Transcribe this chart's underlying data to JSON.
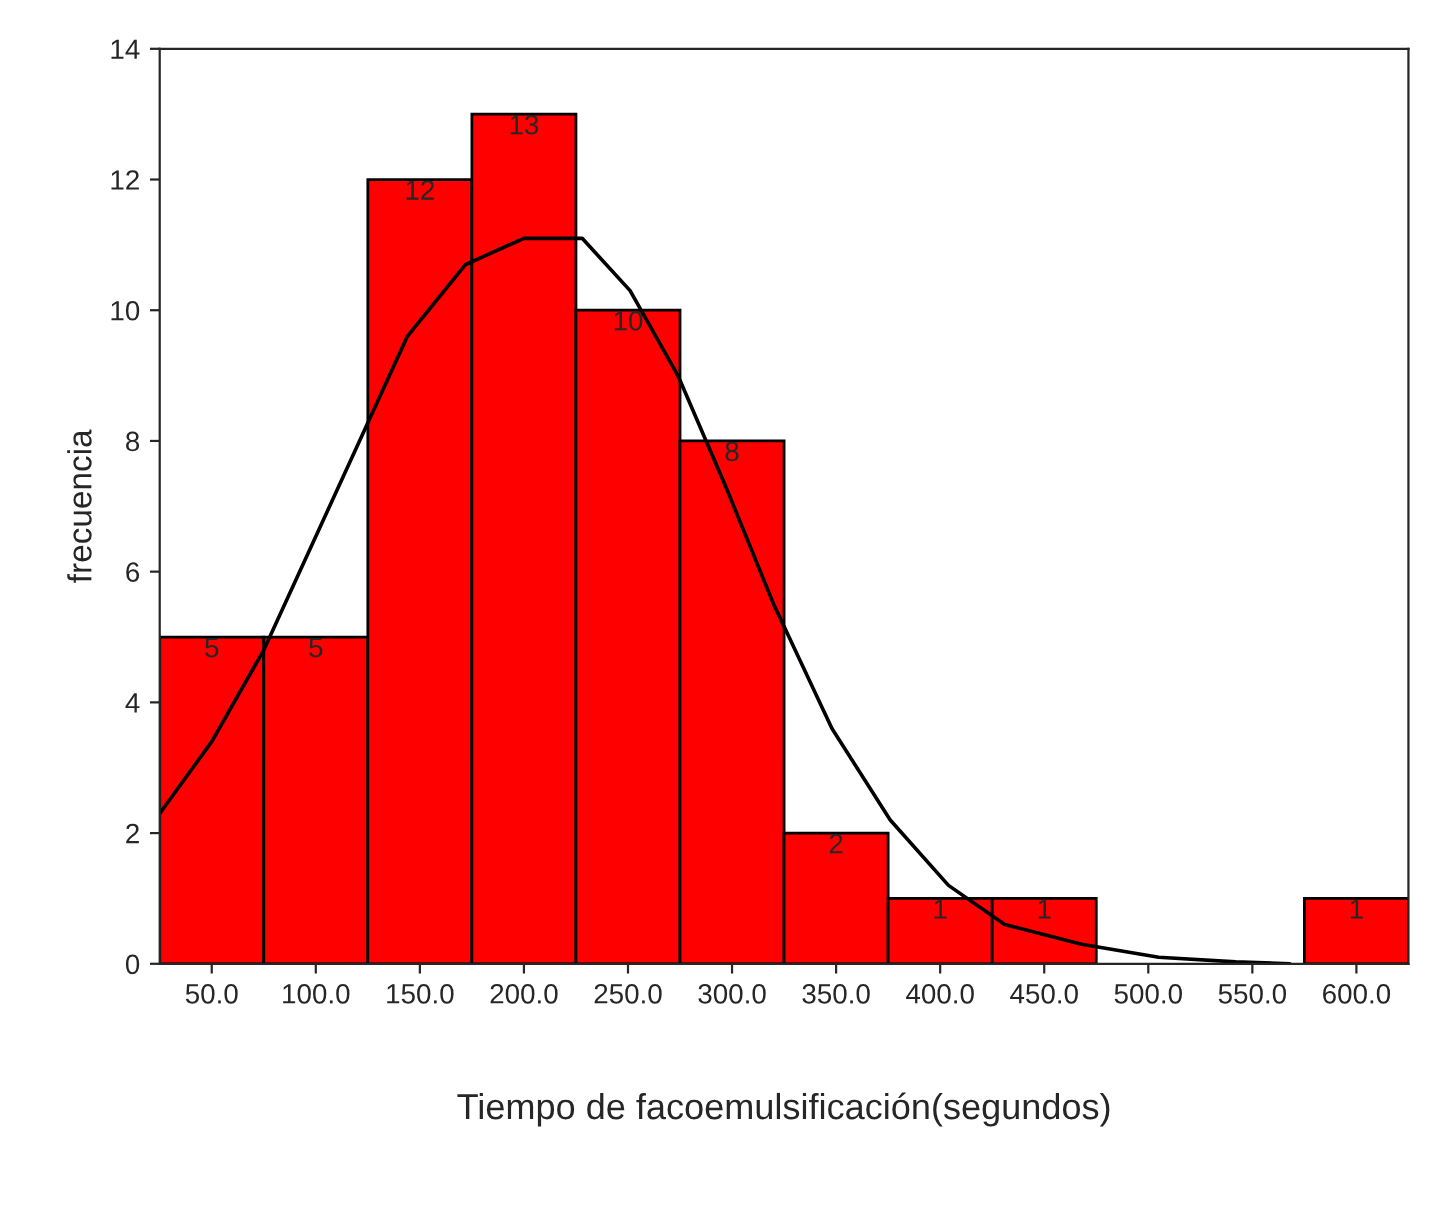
{
  "chart_data": {
    "type": "histogram",
    "xlabel": "Tiempo de facoemulsificación(segundos)",
    "ylabel": "frecuencia",
    "bins": [
      25,
      75,
      125,
      175,
      225,
      275,
      325,
      375,
      425,
      475,
      525,
      575,
      625
    ],
    "values": [
      5,
      5,
      12,
      13,
      10,
      8,
      2,
      1,
      1,
      0,
      0,
      1
    ],
    "value_labels": [
      "5",
      "5",
      "12",
      "13",
      "10",
      "8",
      "2",
      "1",
      "1",
      null,
      null,
      "1"
    ],
    "color": "#ff0000",
    "series": [
      {
        "type": "line",
        "color": "#000000",
        "x": [
          25,
          50,
          75,
          98,
          121,
          144,
          172,
          200,
          228,
          251,
          274,
          297,
          320,
          348,
          376,
          404,
          431,
          468,
          505,
          542,
          568
        ],
        "values": [
          2.3,
          3.4,
          4.8,
          6.4,
          8.0,
          9.6,
          10.7,
          11.1,
          11.1,
          10.3,
          9.0,
          7.3,
          5.5,
          3.6,
          2.2,
          1.2,
          0.6,
          0.3,
          0.1,
          0.03,
          0
        ]
      }
    ],
    "xlim": [
      25,
      625
    ],
    "ylim": [
      0,
      14
    ],
    "xticks": [
      {
        "value": 50,
        "label": "50.0"
      },
      {
        "value": 100,
        "label": "100.0"
      },
      {
        "value": 150,
        "label": "150.0"
      },
      {
        "value": 200,
        "label": "200.0"
      },
      {
        "value": 250,
        "label": "250.0"
      },
      {
        "value": 300,
        "label": "300.0"
      },
      {
        "value": 350,
        "label": "350.0"
      },
      {
        "value": 400,
        "label": "400.0"
      },
      {
        "value": 450,
        "label": "450.0"
      },
      {
        "value": 500,
        "label": "500.0"
      },
      {
        "value": 550,
        "label": "550.0"
      },
      {
        "value": 600,
        "label": "600.0"
      }
    ],
    "yticks": [
      0,
      2,
      4,
      6,
      8,
      10,
      12,
      14
    ],
    "grid": false
  }
}
